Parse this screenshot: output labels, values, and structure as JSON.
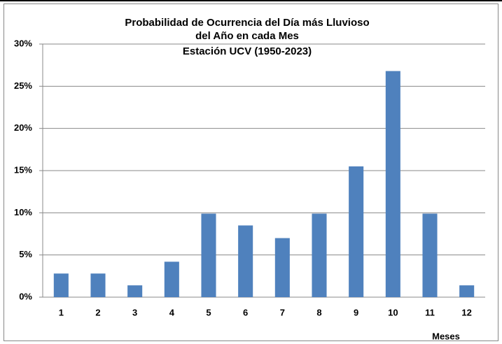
{
  "chart_data": {
    "type": "bar",
    "title": [
      "Probabilidad de Ocurrencia del Día más Lluvioso",
      "del Año en cada Mes",
      "Estación UCV (1950-2023)"
    ],
    "x_label": "Meses",
    "categories": [
      "1",
      "2",
      "3",
      "4",
      "5",
      "6",
      "7",
      "8",
      "9",
      "10",
      "11",
      "12"
    ],
    "values": [
      2.8,
      2.8,
      1.4,
      4.2,
      9.9,
      8.5,
      7.0,
      9.9,
      15.5,
      26.8,
      9.9,
      1.4
    ],
    "color": "#4f81bd",
    "ylim": [
      0,
      30
    ],
    "yticks": [
      {
        "value": 0,
        "label": "0%"
      },
      {
        "value": 5,
        "label": "5%"
      },
      {
        "value": 10,
        "label": "10%"
      },
      {
        "value": 15,
        "label": "15%"
      },
      {
        "value": 20,
        "label": "20%"
      },
      {
        "value": 25,
        "label": "25%"
      },
      {
        "value": 30,
        "label": "30%"
      }
    ],
    "grid": true
  }
}
